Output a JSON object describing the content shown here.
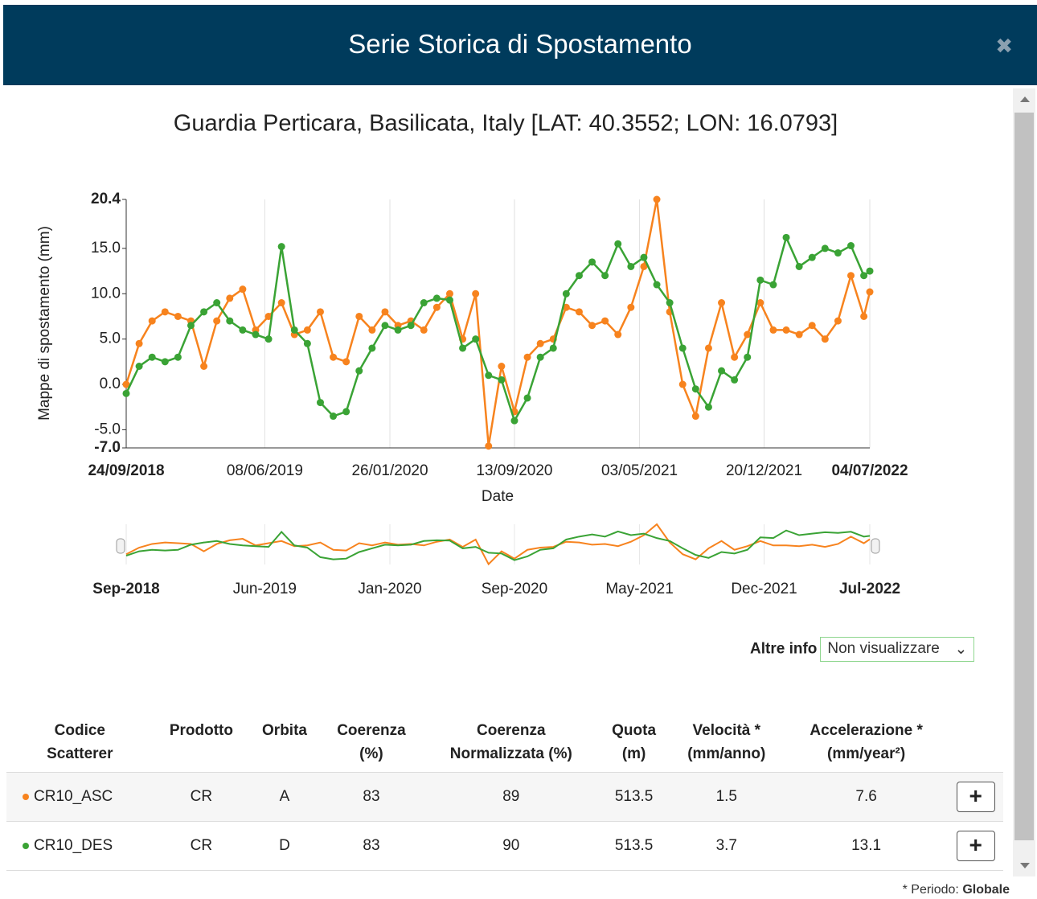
{
  "header": {
    "title": "Serie Storica di Spostamento",
    "close": "✖"
  },
  "chart_data": {
    "type": "line",
    "title": "Guardia Perticara, Basilicata, Italy [LAT: 40.3552; LON: 16.0793]",
    "ylabel": "Mappe di spostamento (mm)",
    "xlabel": "Date",
    "x": [
      "24/09/2018",
      "18/10/2018",
      "11/11/2018",
      "05/12/2018",
      "29/12/2018",
      "22/01/2019",
      "15/02/2019",
      "11/03/2019",
      "04/04/2019",
      "28/04/2019",
      "22/05/2019",
      "15/06/2019",
      "09/07/2019",
      "02/08/2019",
      "26/08/2019",
      "19/09/2019",
      "13/10/2019",
      "06/11/2019",
      "30/11/2019",
      "24/12/2019",
      "17/01/2020",
      "10/02/2020",
      "05/03/2020",
      "29/03/2020",
      "22/04/2020",
      "16/05/2020",
      "09/06/2020",
      "03/07/2020",
      "27/07/2020",
      "20/08/2020",
      "13/09/2020",
      "07/10/2020",
      "31/10/2020",
      "24/11/2020",
      "18/12/2020",
      "11/01/2021",
      "04/02/2021",
      "28/02/2021",
      "24/03/2021",
      "17/04/2021",
      "11/05/2021",
      "04/06/2021",
      "28/06/2021",
      "22/07/2021",
      "15/08/2021",
      "08/09/2021",
      "02/10/2021",
      "26/10/2021",
      "19/11/2021",
      "13/12/2021",
      "06/01/2022",
      "30/01/2022",
      "23/02/2022",
      "19/03/2022",
      "12/04/2022",
      "06/05/2022",
      "30/05/2022",
      "23/06/2022",
      "04/07/2022"
    ],
    "series": [
      {
        "name": "CR10_ASC",
        "color": "#f7831e",
        "values": [
          0,
          4.5,
          7,
          8,
          7.5,
          7,
          2,
          7,
          9.5,
          10.5,
          6,
          7.5,
          9,
          5.5,
          6,
          8,
          3,
          2.5,
          7.5,
          6,
          8,
          6.5,
          7,
          6,
          8.5,
          10,
          5,
          10,
          -6.8,
          2,
          -3,
          3,
          4.5,
          5,
          8.5,
          8,
          6.5,
          7,
          5.5,
          8.5,
          13,
          20.4,
          8,
          0,
          -3.5,
          4,
          9,
          3,
          5.5,
          9,
          6,
          6,
          5.5,
          6.5,
          5,
          7,
          12,
          7.5,
          10.2
        ]
      },
      {
        "name": "CR10_DES",
        "color": "#3aa335",
        "values": [
          -1,
          2,
          3,
          2.5,
          3,
          6.5,
          8,
          9,
          7,
          6,
          5.5,
          5,
          15.2,
          6,
          4.5,
          -2,
          -3.5,
          -3,
          1.5,
          4,
          6.5,
          6,
          6.5,
          9,
          9.5,
          9.3,
          4,
          5,
          1,
          0.5,
          -4,
          -1.5,
          3,
          4,
          10,
          12,
          13.5,
          12,
          15.5,
          13,
          14,
          11,
          9,
          4,
          -0.5,
          -2.5,
          1.5,
          0.5,
          3,
          11.5,
          11,
          16.2,
          13,
          14,
          15,
          14.5,
          15.3,
          12,
          12.5
        ]
      }
    ],
    "xlim": [
      "24/09/2018",
      "04/07/2022"
    ],
    "xticks": [
      "24/09/2018",
      "08/06/2019",
      "26/01/2020",
      "13/09/2020",
      "03/05/2021",
      "20/12/2021",
      "04/07/2022"
    ],
    "ylim": [
      -7,
      20.4
    ],
    "yticks": [
      {
        "value": -7,
        "label": "-7.0"
      },
      {
        "value": -5,
        "label": "-5.0"
      },
      {
        "value": 0,
        "label": "0.0"
      },
      {
        "value": 5,
        "label": "5.0"
      },
      {
        "value": 10,
        "label": "10.0"
      },
      {
        "value": 15,
        "label": "15.0"
      },
      20.4
    ],
    "grid": "x",
    "navigator_ticks": [
      {
        "value": "24/09/2018",
        "label": "Sep-2018"
      },
      {
        "value": "08/06/2019",
        "label": "Jun-2019"
      },
      {
        "value": "26/01/2020",
        "label": "Jan-2020"
      },
      {
        "value": "13/09/2020",
        "label": "Sep-2020"
      },
      {
        "value": "03/05/2021",
        "label": "May-2021"
      },
      {
        "value": "20/12/2021",
        "label": "Dec-2021"
      },
      {
        "value": "04/07/2022",
        "label": "Jul-2022"
      }
    ]
  },
  "controls": {
    "label": "Altre info",
    "select": "Non visualizzare"
  },
  "table": {
    "headers": [
      [
        "Codice",
        "Scatterer"
      ],
      [
        "Prodotto"
      ],
      [
        "Orbita"
      ],
      [
        "Coerenza",
        "(%)"
      ],
      [
        "Coerenza",
        "Normalizzata (%)"
      ],
      [
        "Quota",
        "(m)"
      ],
      [
        "Velocità *",
        "(mm/anno)"
      ],
      [
        "Accelerazione *",
        "(mm/year²)"
      ]
    ],
    "rows": [
      [
        "CR10_ASC",
        "CR",
        "A",
        "83",
        "89",
        "513.5",
        "1.5",
        "7.6"
      ],
      [
        "CR10_DES",
        "CR",
        "D",
        "83",
        "90",
        "513.5",
        "3.7",
        "13.1"
      ]
    ],
    "button": "+"
  },
  "footnote": {
    "text": "* Periodo:",
    "strong": "Globale"
  }
}
